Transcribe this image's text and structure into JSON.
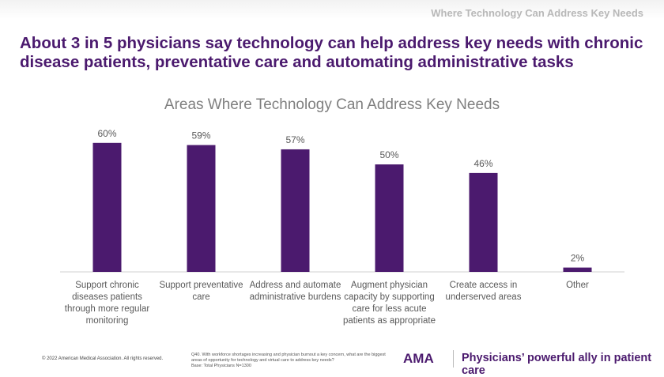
{
  "header": {
    "section": "Where Technology Can Address Key Needs",
    "headline": "About 3 in 5 physicians say technology can help address key needs with chronic disease patients, preventative care and automating administrative tasks"
  },
  "chart_data": {
    "type": "bar",
    "title": "Areas Where Technology Can Address Key Needs",
    "categories": [
      [
        "Support chronic",
        "diseases patients",
        "through more regular",
        "monitoring"
      ],
      [
        "Support preventative",
        "care"
      ],
      [
        "Address and automate",
        "administrative burdens"
      ],
      [
        "Augment physician",
        "capacity by supporting",
        "care for less acute",
        "patients as appropriate"
      ],
      [
        "Create access in",
        "underserved areas"
      ],
      [
        "Other"
      ]
    ],
    "values": [
      60,
      59,
      57,
      50,
      46,
      2
    ],
    "labels": [
      "60%",
      "59%",
      "57%",
      "50%",
      "46%",
      "2%"
    ],
    "ylim": [
      0,
      100
    ],
    "bar_color": "#4b1a6e"
  },
  "footer": {
    "copyright": "© 2022 American Medical Association. All rights reserved.",
    "question": "Q40. With workforce shortages increasing and physician burnout a key concern, what are the biggest areas of opportunity for technology and virtual care to address key needs?",
    "base": "Base: Total Physicians N=1300",
    "logo": "AMA",
    "tagline": "Physicians’ powerful ally in patient care"
  }
}
